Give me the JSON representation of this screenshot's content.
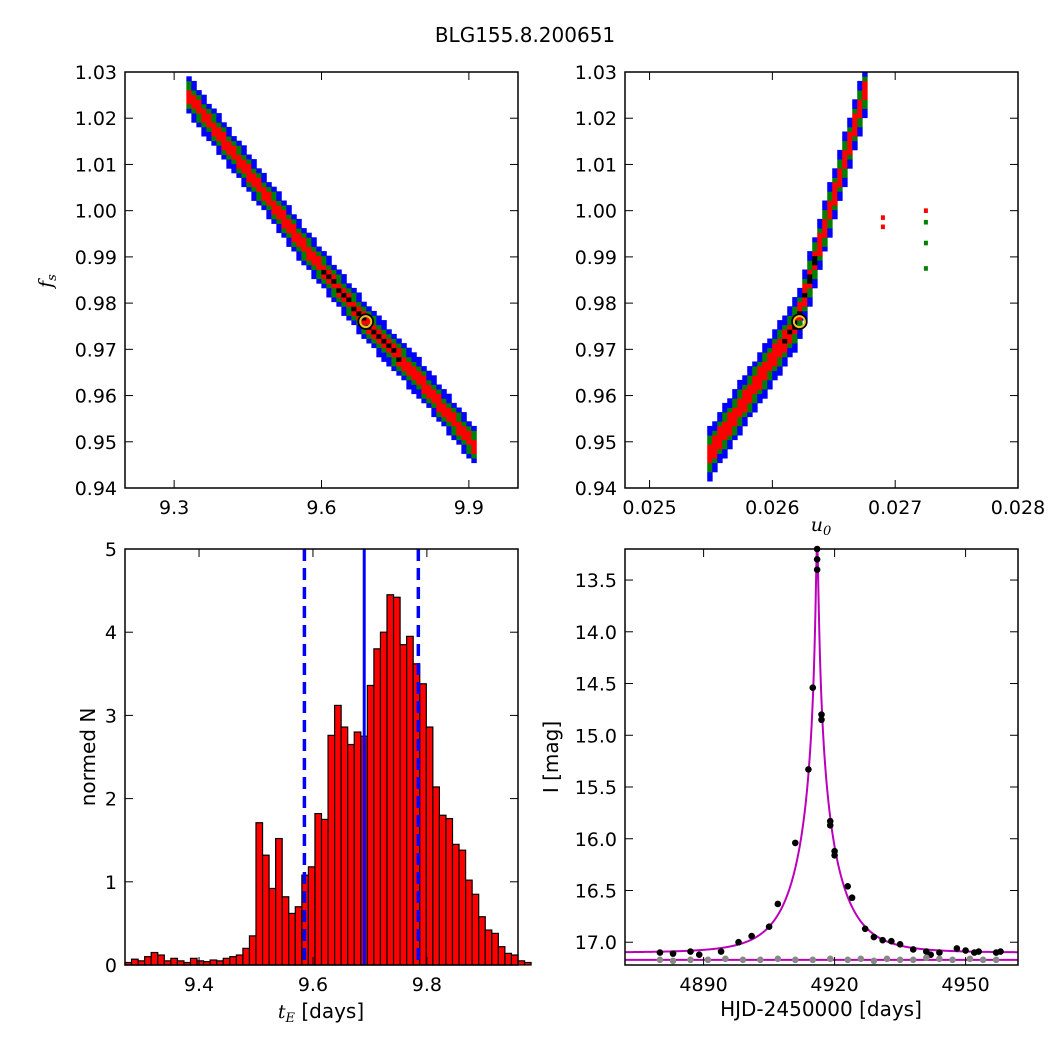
{
  "figure": {
    "title": "BLG155.8.200651"
  },
  "chart_data": [
    {
      "id": "fs_vs_tE",
      "type": "heatmap",
      "title": "",
      "xlabel": "",
      "ylabel": "f_s",
      "ylabel_main": "f",
      "ylabel_sub": "s",
      "xlim": [
        9.2,
        10.0
      ],
      "ylim": [
        0.94,
        1.03
      ],
      "xticks": [
        "9.3",
        "9.6",
        "9.9"
      ],
      "xtick_values": [
        9.3,
        9.6,
        9.9
      ],
      "yticks": [
        "0.94",
        "0.95",
        "0.96",
        "0.97",
        "0.98",
        "0.99",
        "1.00",
        "1.01",
        "1.02",
        "1.03"
      ],
      "ytick_values": [
        0.94,
        0.95,
        0.96,
        0.97,
        0.98,
        0.99,
        1.0,
        1.01,
        1.02,
        1.03
      ],
      "confidence_levels": [
        {
          "level": "3sigma",
          "color": "#0000ff"
        },
        {
          "level": "2sigma",
          "color": "#008000"
        },
        {
          "level": "1sigma",
          "color": "#ff0000"
        },
        {
          "level": "best",
          "color": "#000000"
        }
      ],
      "ridge_points": [
        [
          9.33,
          1.025
        ],
        [
          9.45,
          1.0085
        ],
        [
          9.56,
          0.993
        ],
        [
          9.69,
          0.976
        ],
        [
          9.8,
          0.9635
        ],
        [
          9.92,
          0.948
        ]
      ],
      "band_halfwidths": {
        "blue": 0.032,
        "green": 0.021,
        "red": 0.012,
        "black": 0.004
      },
      "black_range": [
        9.6,
        9.76
      ],
      "best_fit": {
        "x": 9.69,
        "y": 0.976
      }
    },
    {
      "id": "fs_vs_u0",
      "type": "heatmap",
      "title": "",
      "xlabel": "u_0",
      "xlabel_main": "u",
      "xlabel_sub": "0",
      "ylabel": "",
      "xlim": [
        0.0248,
        0.028
      ],
      "ylim": [
        0.94,
        1.03
      ],
      "xticks": [
        "0.025",
        "0.026",
        "0.027",
        "0.028"
      ],
      "xtick_values": [
        0.025,
        0.026,
        0.027,
        0.028
      ],
      "yticks": [
        "0.94",
        "0.95",
        "0.96",
        "0.97",
        "0.98",
        "0.99",
        "1.00",
        "1.01",
        "1.02",
        "1.03"
      ],
      "ytick_values": [
        0.94,
        0.95,
        0.96,
        0.97,
        0.98,
        0.99,
        1.0,
        1.01,
        1.02,
        1.03
      ],
      "confidence_levels": [
        {
          "level": "3sigma",
          "color": "#0000ff"
        },
        {
          "level": "2sigma",
          "color": "#008000"
        },
        {
          "level": "1sigma",
          "color": "#ff0000"
        },
        {
          "level": "best",
          "color": "#000000"
        }
      ],
      "ridge_points": [
        [
          0.02549,
          0.9475
        ],
        [
          0.0262,
          0.976
        ],
        [
          0.02676,
          1.0265
        ]
      ],
      "band_halfwidths": {
        "blue": 9e-05,
        "green": 6e-05,
        "red": 3.5e-05,
        "black": 1.2e-05
      },
      "black_range": [
        0.0261,
        0.02635
      ],
      "extra_cells": [
        {
          "x": 0.02725,
          "y": 1.0,
          "color": "#ff0000"
        },
        {
          "x": 0.02725,
          "y": 0.9975,
          "color": "#008000"
        },
        {
          "x": 0.02725,
          "y": 0.993,
          "color": "#008000"
        },
        {
          "x": 0.02725,
          "y": 0.9875,
          "color": "#008000"
        },
        {
          "x": 0.0269,
          "y": 0.9985,
          "color": "#ff0000"
        },
        {
          "x": 0.0269,
          "y": 0.9965,
          "color": "#ff0000"
        }
      ],
      "best_fit": {
        "x": 0.02622,
        "y": 0.976
      }
    },
    {
      "id": "tE_histogram",
      "type": "bar",
      "title": "",
      "xlabel": "t_E [days]",
      "xlabel_main": "t",
      "xlabel_sub": "E",
      "xlabel_suffix": "  [days]",
      "ylabel": "normed N",
      "xlim": [
        9.27,
        9.96
      ],
      "ylim": [
        0,
        5
      ],
      "xticks": [
        "9.4",
        "9.6",
        "9.8"
      ],
      "xtick_values": [
        9.4,
        9.6,
        9.8
      ],
      "yticks": [
        "0",
        "1",
        "2",
        "3",
        "4",
        "5"
      ],
      "ytick_values": [
        0,
        1,
        2,
        3,
        4,
        5
      ],
      "bin_start": 9.27,
      "bin_width": 0.0115,
      "values": [
        0.03,
        0.07,
        0.05,
        0.1,
        0.15,
        0.12,
        0.05,
        0.08,
        0.05,
        0.03,
        0.08,
        0.05,
        0.04,
        0.06,
        0.05,
        0.08,
        0.1,
        0.12,
        0.2,
        0.35,
        1.71,
        1.32,
        0.92,
        1.52,
        0.82,
        0.62,
        0.7,
        1.08,
        1.18,
        1.82,
        1.75,
        2.76,
        3.12,
        2.86,
        2.65,
        2.8,
        2.75,
        3.36,
        3.8,
        4.0,
        4.45,
        4.42,
        3.85,
        3.95,
        3.62,
        3.38,
        2.86,
        2.14,
        1.8,
        1.76,
        1.45,
        1.38,
        1.02,
        0.85,
        0.58,
        0.42,
        0.38,
        0.22,
        0.14,
        0.12,
        0.05,
        0.03
      ],
      "bar_color": "#ff0000",
      "median": 9.69,
      "sigma_lines": [
        9.585,
        9.785
      ],
      "line_color": "#0000ff"
    },
    {
      "id": "light_curve",
      "type": "scatter",
      "title": "",
      "xlabel": "HJD-2450000 [days]",
      "ylabel": "I [mag]",
      "xlim": [
        4872,
        4962
      ],
      "ylim": [
        17.22,
        13.2
      ],
      "y_inverted": true,
      "xticks": [
        "4890",
        "4920",
        "4950"
      ],
      "xtick_values": [
        4890,
        4920,
        4950
      ],
      "yticks": [
        "13.5",
        "14.0",
        "14.5",
        "15.0",
        "15.5",
        "16.0",
        "16.5",
        "17.0"
      ],
      "ytick_values": [
        13.5,
        14.0,
        14.5,
        15.0,
        15.5,
        16.0,
        16.5,
        17.0
      ],
      "model": {
        "t0": 4916.0,
        "tE": 9.69,
        "u0": 0.0262,
        "base_mag": 17.1,
        "color": "#bb00bb"
      },
      "baseline_model": {
        "mag": 17.17,
        "color": "#bb00bb"
      },
      "series": [
        {
          "color": "#000000",
          "points": [
            [
              4880,
              17.1
            ],
            [
              4883,
              17.11
            ],
            [
              4887,
              17.09
            ],
            [
              4889,
              17.12
            ],
            [
              4894,
              17.09
            ],
            [
              4898,
              17.0
            ],
            [
              4901,
              16.94
            ],
            [
              4905,
              16.85
            ],
            [
              4907,
              16.63
            ],
            [
              4911,
              16.04
            ],
            [
              4914,
              15.33
            ],
            [
              4915,
              14.54
            ],
            [
              4916,
              13.4
            ],
            [
              4916,
              13.3
            ],
            [
              4916,
              13.2
            ],
            [
              4917,
              14.8
            ],
            [
              4917,
              14.85
            ],
            [
              4919,
              15.83
            ],
            [
              4919,
              15.87
            ],
            [
              4920,
              16.12
            ],
            [
              4920,
              16.16
            ],
            [
              4923,
              16.46
            ],
            [
              4924,
              16.57
            ],
            [
              4927,
              16.87
            ],
            [
              4929,
              16.95
            ],
            [
              4931,
              16.98
            ],
            [
              4933,
              16.99
            ],
            [
              4935,
              17.02
            ],
            [
              4938,
              17.07
            ],
            [
              4941,
              17.09
            ],
            [
              4942,
              17.12
            ],
            [
              4944,
              17.1
            ],
            [
              4948,
              17.06
            ],
            [
              4950,
              17.08
            ],
            [
              4952,
              17.1
            ],
            [
              4953,
              17.09
            ],
            [
              4957,
              17.1
            ],
            [
              4958,
              17.09
            ]
          ]
        },
        {
          "color": "#888888",
          "points": [
            [
              4880,
              17.17
            ],
            [
              4883,
              17.18
            ],
            [
              4887,
              17.17
            ],
            [
              4891,
              17.17
            ],
            [
              4895,
              17.16
            ],
            [
              4899,
              17.17
            ],
            [
              4903,
              17.17
            ],
            [
              4907,
              17.16
            ],
            [
              4911,
              17.17
            ],
            [
              4915,
              17.17
            ],
            [
              4919,
              17.16
            ],
            [
              4923,
              17.17
            ],
            [
              4926,
              17.16
            ],
            [
              4929,
              17.18
            ],
            [
              4932,
              17.16
            ],
            [
              4935,
              17.17
            ],
            [
              4938,
              17.17
            ],
            [
              4941,
              17.15
            ],
            [
              4944,
              17.16
            ],
            [
              4947,
              17.17
            ],
            [
              4951,
              17.16
            ],
            [
              4954,
              17.17
            ],
            [
              4957,
              17.17
            ]
          ]
        }
      ]
    }
  ]
}
